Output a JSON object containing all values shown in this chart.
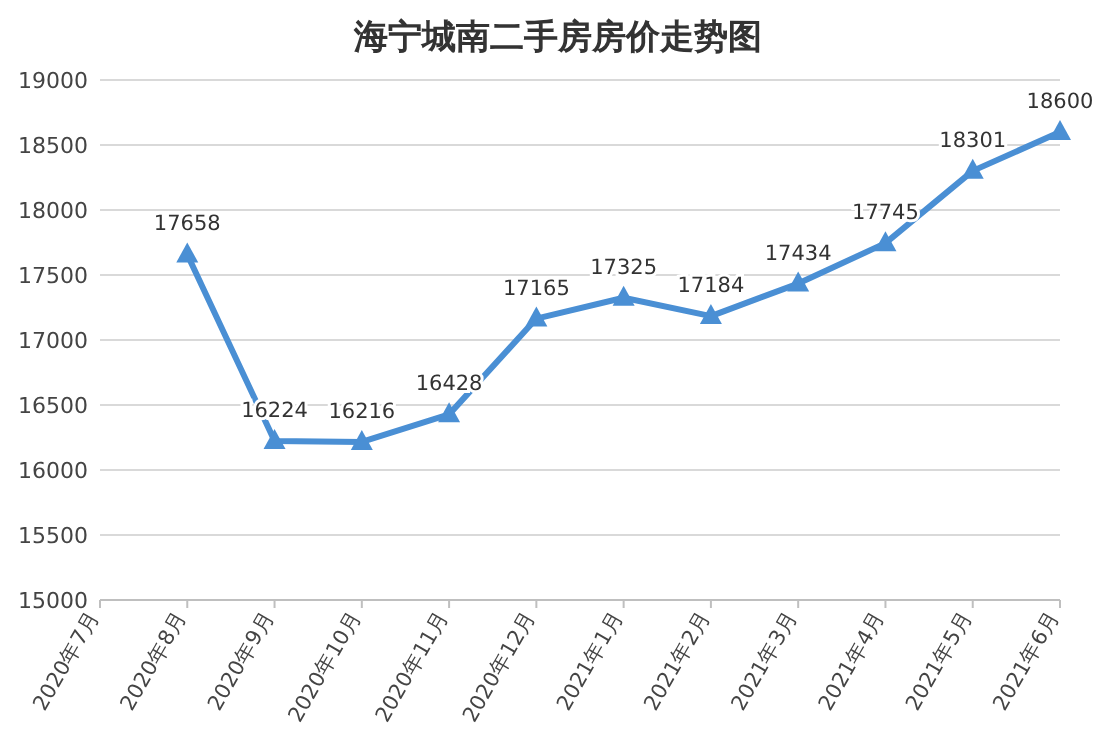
{
  "chart_data": {
    "type": "line",
    "title": "海宁城南二手房房价走势图",
    "categories": [
      "2020年7月",
      "2020年8月",
      "2020年9月",
      "2020年10月",
      "2020年11月",
      "2020年12月",
      "2021年1月",
      "2021年2月",
      "2021年3月",
      "2021年4月",
      "2021年5月",
      "2021年6月"
    ],
    "series": [
      {
        "color": "#4a8fd4",
        "values": [
          null,
          17658,
          16224,
          16216,
          16428,
          17165,
          17325,
          17184,
          17434,
          17745,
          18301,
          18600
        ]
      }
    ],
    "ylim": [
      15000,
      19000
    ],
    "yticks": [
      15000,
      15500,
      16000,
      16500,
      17000,
      17500,
      18000,
      18500,
      19000
    ],
    "grid": "y",
    "marker": "triangle",
    "line_style": "solid",
    "data_labels": true
  }
}
